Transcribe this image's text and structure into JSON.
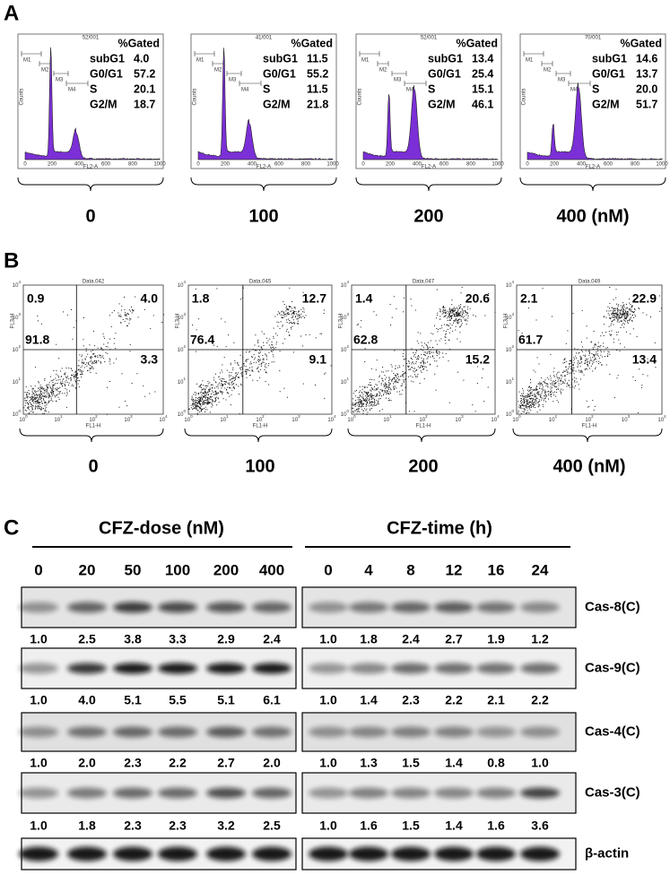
{
  "panels": {
    "A": {
      "label": "A",
      "header": "%Gated",
      "x_axis_label": "FL2-A",
      "y_axis_label": "Counts",
      "gates": [
        "M1",
        "M2",
        "M3",
        "M4"
      ],
      "xticks": [
        "0",
        "200",
        "400",
        "600",
        "800",
        "1000"
      ],
      "plots": [
        {
          "sample": "52/001",
          "stats": [
            [
              "subG1",
              "4.0"
            ],
            [
              "G0/G1",
              "57.2"
            ],
            [
              "S",
              "20.1"
            ],
            [
              "G2/M",
              "18.7"
            ]
          ],
          "dose": "0"
        },
        {
          "sample": "41/001",
          "stats": [
            [
              "subG1",
              "11.5"
            ],
            [
              "G0/G1",
              "55.2"
            ],
            [
              "S",
              "11.5"
            ],
            [
              "G2/M",
              "21.8"
            ]
          ],
          "dose": "100"
        },
        {
          "sample": "52/001",
          "stats": [
            [
              "subG1",
              "13.4"
            ],
            [
              "G0/G1",
              "25.4"
            ],
            [
              "S",
              "15.1"
            ],
            [
              "G2/M",
              "46.1"
            ]
          ],
          "dose": "200"
        },
        {
          "sample": "70/001",
          "stats": [
            [
              "subG1",
              "14.6"
            ],
            [
              "G0/G1",
              "13.7"
            ],
            [
              "S",
              "20.0"
            ],
            [
              "G2/M",
              "51.7"
            ]
          ],
          "dose": "400 (nM)"
        }
      ]
    },
    "B": {
      "label": "B",
      "x_axis_label": "FL1-H",
      "y_axis_label": "FL3-H",
      "tick_base": "10",
      "tick_exponents": [
        "0",
        "1",
        "2",
        "3",
        "4"
      ],
      "plots": [
        {
          "sample": "Data.042",
          "quadrants": [
            "0.9",
            "4.0",
            "91.8",
            "3.3"
          ],
          "dose": "0"
        },
        {
          "sample": "Data.045",
          "quadrants": [
            "1.8",
            "12.7",
            "76.4",
            "9.1"
          ],
          "dose": "100"
        },
        {
          "sample": "Data.047",
          "quadrants": [
            "1.4",
            "20.6",
            "62.8",
            "15.2"
          ],
          "dose": "200"
        },
        {
          "sample": "Data.049",
          "quadrants": [
            "2.1",
            "22.9",
            "61.7",
            "13.4"
          ],
          "dose": "400 (nM)"
        }
      ]
    },
    "C": {
      "label": "C",
      "dose_header": "CFZ-dose (nM)",
      "time_header": "CFZ-time (h)",
      "dose_lanes": [
        "0",
        "20",
        "50",
        "100",
        "200",
        "400"
      ],
      "time_lanes": [
        "0",
        "4",
        "8",
        "12",
        "16",
        "24"
      ],
      "rows": [
        {
          "label": "Cas-8(C)",
          "dose_values": [
            "1.0",
            "2.5",
            "3.8",
            "3.3",
            "2.9",
            "2.4"
          ],
          "time_values": [
            "1.0",
            "1.8",
            "2.4",
            "2.7",
            "1.9",
            "1.2"
          ]
        },
        {
          "label": "Cas-9(C)",
          "dose_values": [
            "1.0",
            "4.0",
            "5.1",
            "5.5",
            "5.1",
            "6.1"
          ],
          "time_values": [
            "1.0",
            "1.4",
            "2.3",
            "2.2",
            "2.1",
            "2.2"
          ]
        },
        {
          "label": "Cas-4(C)",
          "dose_values": [
            "1.0",
            "2.0",
            "2.3",
            "2.2",
            "2.7",
            "2.0"
          ],
          "time_values": [
            "1.0",
            "1.3",
            "1.5",
            "1.4",
            "0.8",
            "1.0"
          ]
        },
        {
          "label": "Cas-3(C)",
          "dose_values": [
            "1.0",
            "1.8",
            "2.3",
            "2.3",
            "3.2",
            "2.5"
          ],
          "time_values": [
            "1.0",
            "1.6",
            "1.5",
            "1.4",
            "1.6",
            "3.6"
          ]
        },
        {
          "label": "β-actin"
        }
      ]
    }
  }
}
